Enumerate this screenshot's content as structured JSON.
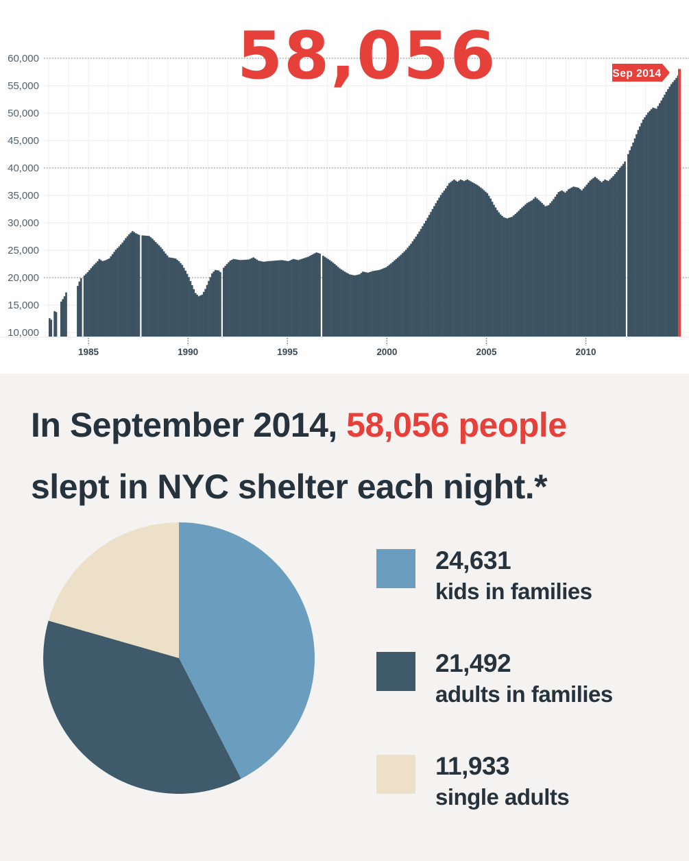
{
  "colors": {
    "bar": "#3d5362",
    "red": "#e6403a",
    "pie_blue": "#6b9ebe",
    "pie_slate": "#3e5a6b",
    "pie_cream": "#ece0c8",
    "grid_light": "#efecec",
    "grid_dotted": "#8f8f8f",
    "text_dark": "#26333d",
    "axis_label": "#51606d"
  },
  "timeseries_chart": {
    "big_number": "58,056",
    "marker_label": "Sep 2014",
    "y_ticks": [
      "60,000",
      "55,000",
      "50,000",
      "45,000",
      "40,000",
      "35,000",
      "30,000",
      "25,000",
      "20,000",
      "15,000",
      "10,000"
    ],
    "x_ticks": [
      "1985",
      "1990",
      "1995",
      "2000",
      "2005",
      "2010"
    ]
  },
  "headline": {
    "prefix": "In September 2014, ",
    "highlight": "58,056 people",
    "line2": "slept in NYC shelter each night.*"
  },
  "legend": [
    {
      "value": "24,631",
      "label": "kids in families",
      "color": "#6b9ebe"
    },
    {
      "value": "21,492",
      "label": "adults in families",
      "color": "#3e5a6b"
    },
    {
      "value": "11,933",
      "label": "single adults",
      "color": "#ece0c8"
    }
  ],
  "chart_data": [
    {
      "type": "bar",
      "title": "58,056",
      "annotation": "Sep 2014",
      "ylim": [
        10000,
        60000
      ],
      "y_gridlines_every": 5000,
      "dotted_gridlines": [
        20000,
        40000,
        60000
      ],
      "x_tick_years": [
        1985,
        1990,
        1995,
        2000,
        2005,
        2010
      ],
      "x_start_year": 1983,
      "total_months": 380,
      "last_point": {
        "label": "Sep 2014",
        "value": 58056
      },
      "missing_months": [
        2,
        5,
        6,
        11,
        12,
        13,
        14,
        15,
        16,
        20,
        55,
        104,
        164,
        348
      ],
      "anchors": [
        [
          1983.0,
          12600
        ],
        [
          1983.08,
          12300
        ],
        [
          1983.25,
          13900
        ],
        [
          1983.33,
          13700
        ],
        [
          1983.58,
          15600
        ],
        [
          1983.67,
          16100
        ],
        [
          1983.75,
          16600
        ],
        [
          1983.83,
          17300
        ],
        [
          1984.42,
          18500
        ],
        [
          1984.5,
          19300
        ],
        [
          1984.58,
          19900
        ],
        [
          1984.75,
          20400
        ],
        [
          1984.92,
          21000
        ],
        [
          1985.08,
          21700
        ],
        [
          1985.25,
          22400
        ],
        [
          1985.42,
          23000
        ],
        [
          1985.5,
          23400
        ],
        [
          1985.67,
          23000
        ],
        [
          1985.83,
          23200
        ],
        [
          1986.0,
          23500
        ],
        [
          1986.17,
          24300
        ],
        [
          1986.33,
          25100
        ],
        [
          1986.5,
          25700
        ],
        [
          1986.67,
          26400
        ],
        [
          1986.83,
          27200
        ],
        [
          1987.0,
          27900
        ],
        [
          1987.17,
          28500
        ],
        [
          1987.33,
          28100
        ],
        [
          1987.5,
          27800
        ],
        [
          1987.67,
          27700
        ],
        [
          1988.0,
          27600
        ],
        [
          1988.17,
          27100
        ],
        [
          1988.33,
          26500
        ],
        [
          1988.5,
          25900
        ],
        [
          1988.67,
          25200
        ],
        [
          1988.83,
          24400
        ],
        [
          1989.0,
          23700
        ],
        [
          1989.17,
          23600
        ],
        [
          1989.33,
          23500
        ],
        [
          1989.5,
          23000
        ],
        [
          1989.67,
          22300
        ],
        [
          1989.83,
          21300
        ],
        [
          1990.0,
          20100
        ],
        [
          1990.17,
          18600
        ],
        [
          1990.33,
          17200
        ],
        [
          1990.5,
          16600
        ],
        [
          1990.67,
          16900
        ],
        [
          1990.83,
          17900
        ],
        [
          1991.0,
          19400
        ],
        [
          1991.17,
          20800
        ],
        [
          1991.33,
          21400
        ],
        [
          1991.5,
          21300
        ],
        [
          1991.58,
          21000
        ],
        [
          1991.75,
          21800
        ],
        [
          1991.92,
          22500
        ],
        [
          1992.08,
          23100
        ],
        [
          1992.25,
          23400
        ],
        [
          1992.58,
          23200
        ],
        [
          1993.0,
          23300
        ],
        [
          1993.25,
          23700
        ],
        [
          1993.5,
          23100
        ],
        [
          1993.75,
          22900
        ],
        [
          1994.0,
          23000
        ],
        [
          1994.33,
          23100
        ],
        [
          1994.67,
          23200
        ],
        [
          1995.0,
          23000
        ],
        [
          1995.25,
          23400
        ],
        [
          1995.5,
          23200
        ],
        [
          1995.75,
          23500
        ],
        [
          1996.0,
          23800
        ],
        [
          1996.25,
          24300
        ],
        [
          1996.42,
          24600
        ],
        [
          1996.58,
          24400
        ],
        [
          1996.83,
          23800
        ],
        [
          1997.08,
          23200
        ],
        [
          1997.33,
          22500
        ],
        [
          1997.58,
          21700
        ],
        [
          1997.83,
          21100
        ],
        [
          1998.08,
          20600
        ],
        [
          1998.33,
          20400
        ],
        [
          1998.58,
          20600
        ],
        [
          1998.75,
          21100
        ],
        [
          1999.0,
          20900
        ],
        [
          1999.25,
          21200
        ],
        [
          1999.58,
          21400
        ],
        [
          1999.92,
          21900
        ],
        [
          2000.17,
          22600
        ],
        [
          2000.42,
          23400
        ],
        [
          2000.67,
          24200
        ],
        [
          2000.92,
          25100
        ],
        [
          2001.17,
          26200
        ],
        [
          2001.42,
          27500
        ],
        [
          2001.67,
          28900
        ],
        [
          2001.92,
          30400
        ],
        [
          2002.17,
          32000
        ],
        [
          2002.42,
          33600
        ],
        [
          2002.67,
          35100
        ],
        [
          2002.92,
          36300
        ],
        [
          2003.08,
          37200
        ],
        [
          2003.33,
          37900
        ],
        [
          2003.5,
          37500
        ],
        [
          2003.67,
          37900
        ],
        [
          2003.83,
          37600
        ],
        [
          2004.0,
          37900
        ],
        [
          2004.25,
          37400
        ],
        [
          2004.5,
          36900
        ],
        [
          2004.75,
          36200
        ],
        [
          2005.0,
          35400
        ],
        [
          2005.17,
          34400
        ],
        [
          2005.33,
          33300
        ],
        [
          2005.5,
          32300
        ],
        [
          2005.67,
          31500
        ],
        [
          2005.83,
          31000
        ],
        [
          2006.0,
          30800
        ],
        [
          2006.25,
          31100
        ],
        [
          2006.5,
          31900
        ],
        [
          2006.75,
          32800
        ],
        [
          2007.0,
          33600
        ],
        [
          2007.25,
          34100
        ],
        [
          2007.42,
          34700
        ],
        [
          2007.67,
          33900
        ],
        [
          2007.92,
          33000
        ],
        [
          2008.08,
          33200
        ],
        [
          2008.33,
          34300
        ],
        [
          2008.58,
          35600
        ],
        [
          2008.75,
          35900
        ],
        [
          2008.92,
          35500
        ],
        [
          2009.08,
          36100
        ],
        [
          2009.33,
          36600
        ],
        [
          2009.58,
          36400
        ],
        [
          2009.75,
          35900
        ],
        [
          2009.92,
          36600
        ],
        [
          2010.17,
          37700
        ],
        [
          2010.42,
          38400
        ],
        [
          2010.58,
          37900
        ],
        [
          2010.75,
          37400
        ],
        [
          2010.92,
          37900
        ],
        [
          2011.08,
          37600
        ],
        [
          2011.33,
          38500
        ],
        [
          2011.58,
          39600
        ],
        [
          2011.83,
          40700
        ],
        [
          2011.92,
          41200
        ],
        [
          2012.08,
          42500
        ],
        [
          2012.33,
          44600
        ],
        [
          2012.58,
          46900
        ],
        [
          2012.83,
          48800
        ],
        [
          2013.08,
          50100
        ],
        [
          2013.33,
          51000
        ],
        [
          2013.5,
          50800
        ],
        [
          2013.75,
          52300
        ],
        [
          2014.0,
          53900
        ],
        [
          2014.25,
          55300
        ],
        [
          2014.5,
          56400
        ],
        [
          2014.58,
          56800
        ],
        [
          2014.67,
          58056
        ]
      ]
    },
    {
      "type": "pie",
      "total": 58056,
      "legend_position": "right",
      "start_angle_deg": 0,
      "direction": "clockwise",
      "slices": [
        {
          "label": "kids in families",
          "value": 24631,
          "color": "#6b9ebe"
        },
        {
          "label": "adults in families",
          "value": 21492,
          "color": "#3e5a6b"
        },
        {
          "label": "single adults",
          "value": 11933,
          "color": "#ece0c8"
        }
      ]
    }
  ]
}
